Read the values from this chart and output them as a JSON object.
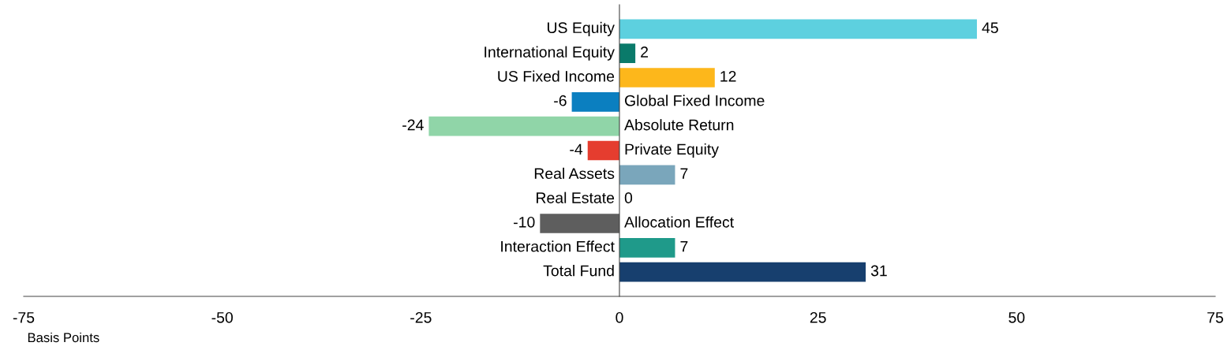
{
  "chart_data": {
    "type": "bar",
    "orientation": "horizontal",
    "xlabel": "Basis Points",
    "categories": [
      "US Equity",
      "International Equity",
      "US Fixed Income",
      "Global Fixed Income",
      "Absolute Return",
      "Private Equity",
      "Real Assets",
      "Real Estate",
      "Allocation Effect",
      "Interaction Effect",
      "Total Fund"
    ],
    "values": [
      45,
      2,
      12,
      -6,
      -24,
      -4,
      7,
      0,
      -10,
      7,
      31
    ],
    "colors": [
      "#5dd0df",
      "#0a7a6a",
      "#fdb71b",
      "#0b7fc0",
      "#90d5a8",
      "#e53d2f",
      "#7aa6bb",
      "#7aa6bb",
      "#5e5e5e",
      "#1f9a8a",
      "#173f6e"
    ],
    "xlim": [
      -75,
      75
    ],
    "xticks": [
      -75,
      -50,
      -25,
      0,
      25,
      50,
      75
    ],
    "data_labels": true,
    "grid": false,
    "legend": false
  }
}
